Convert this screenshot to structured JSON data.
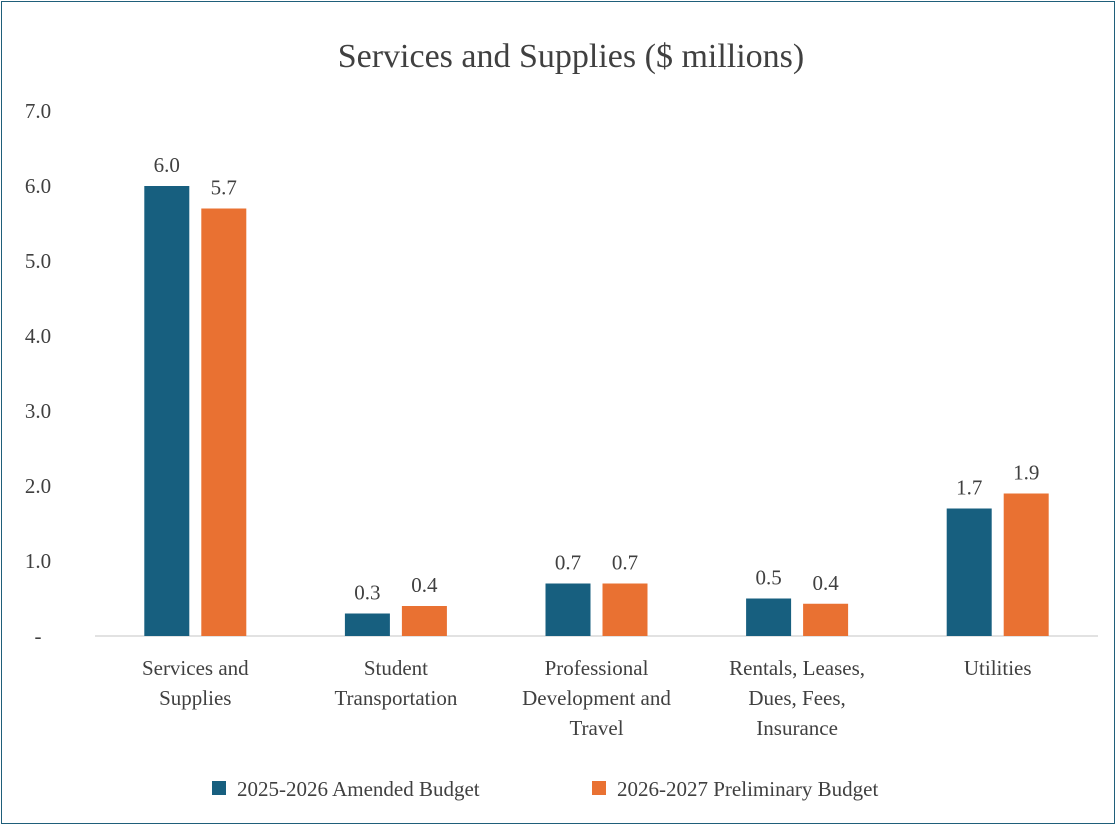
{
  "chart_data": {
    "type": "bar",
    "title": "Services and Supplies ($ millions)",
    "xlabel": "",
    "ylabel": "",
    "ylim": [
      0,
      7
    ],
    "yticks": [
      {
        "value": 0,
        "label": "-"
      },
      {
        "value": 1,
        "label": "1.0"
      },
      {
        "value": 2,
        "label": "2.0"
      },
      {
        "value": 3,
        "label": "3.0"
      },
      {
        "value": 4,
        "label": "4.0"
      },
      {
        "value": 5,
        "label": "5.0"
      },
      {
        "value": 6,
        "label": "6.0"
      },
      {
        "value": 7,
        "label": "7.0"
      }
    ],
    "categories": [
      [
        "Services and",
        "Supplies"
      ],
      [
        "Student",
        "Transportation"
      ],
      [
        "Professional",
        "Development and",
        "Travel"
      ],
      [
        "Rentals, Leases,",
        "Dues, Fees,",
        "Insurance"
      ],
      [
        "Utilities"
      ]
    ],
    "series": [
      {
        "name": "2025-2026 Amended Budget",
        "color": "#175f7f",
        "values": [
          6.0,
          0.3,
          0.7,
          0.5,
          1.7
        ],
        "labels": [
          "6.0",
          "0.3",
          "0.7",
          "0.5",
          "1.7"
        ]
      },
      {
        "name": "2026-2027 Preliminary Budget",
        "color": "#e97132",
        "values": [
          5.7,
          0.4,
          0.7,
          0.43,
          1.9
        ],
        "labels": [
          "5.7",
          "0.4",
          "0.7",
          "0.4",
          "1.9"
        ]
      }
    ],
    "grid": false,
    "legend": "bottom"
  }
}
